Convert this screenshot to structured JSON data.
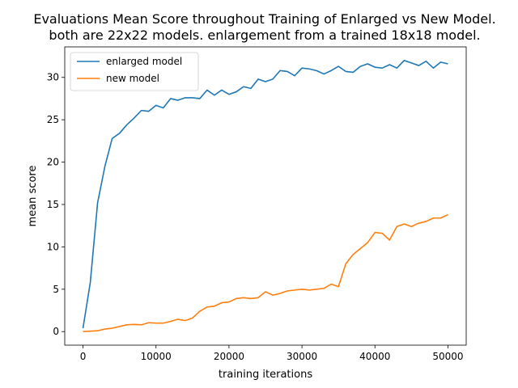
{
  "chart_data": {
    "type": "line",
    "title": "Evaluations Mean Score throughout Training of Enlarged vs New Model.",
    "subtitle": "both are 22x22 models. enlargement from a trained 18x18 model.",
    "xlabel": "training iterations",
    "ylabel": "mean score",
    "xlim": [
      -2500,
      52500
    ],
    "ylim": [
      -1.6,
      33.6
    ],
    "xticks": [
      0,
      10000,
      20000,
      30000,
      40000,
      50000
    ],
    "yticks": [
      0,
      5,
      10,
      15,
      20,
      25,
      30
    ],
    "grid": false,
    "legend_position": "top-left",
    "x": [
      0,
      1000,
      2000,
      3000,
      4000,
      5000,
      6000,
      7000,
      8000,
      9000,
      10000,
      11000,
      12000,
      13000,
      14000,
      15000,
      16000,
      17000,
      18000,
      19000,
      20000,
      21000,
      22000,
      23000,
      24000,
      25000,
      26000,
      27000,
      28000,
      29000,
      30000,
      31000,
      32000,
      33000,
      34000,
      35000,
      36000,
      37000,
      38000,
      39000,
      40000,
      41000,
      42000,
      43000,
      44000,
      45000,
      46000,
      47000,
      48000,
      49000,
      50000
    ],
    "series": [
      {
        "name": "enlarged model",
        "color": "#1f77b4",
        "values": [
          0.4,
          5.8,
          15.2,
          19.5,
          22.8,
          23.4,
          24.4,
          25.2,
          26.1,
          26.0,
          26.7,
          26.4,
          27.5,
          27.3,
          27.6,
          27.6,
          27.5,
          28.5,
          27.9,
          28.5,
          28.0,
          28.3,
          28.9,
          28.7,
          29.8,
          29.5,
          29.8,
          30.8,
          30.7,
          30.2,
          31.1,
          31.0,
          30.8,
          30.4,
          30.8,
          31.3,
          30.7,
          30.6,
          31.3,
          31.6,
          31.2,
          31.1,
          31.5,
          31.1,
          32.0,
          31.7,
          31.4,
          31.9,
          31.1,
          31.8,
          31.6
        ]
      },
      {
        "name": "new model",
        "color": "#ff7f0e",
        "values": [
          0.0,
          0.05,
          0.1,
          0.3,
          0.4,
          0.6,
          0.8,
          0.85,
          0.8,
          1.05,
          1.0,
          1.0,
          1.2,
          1.45,
          1.3,
          1.6,
          2.4,
          2.9,
          3.0,
          3.4,
          3.5,
          3.9,
          4.0,
          3.9,
          4.0,
          4.7,
          4.3,
          4.5,
          4.8,
          4.9,
          5.0,
          4.9,
          5.0,
          5.1,
          5.6,
          5.3,
          8.0,
          9.1,
          9.8,
          10.5,
          11.7,
          11.6,
          10.8,
          12.4,
          12.7,
          12.4,
          12.8,
          13.0,
          13.4,
          13.4,
          13.8
        ]
      }
    ]
  }
}
